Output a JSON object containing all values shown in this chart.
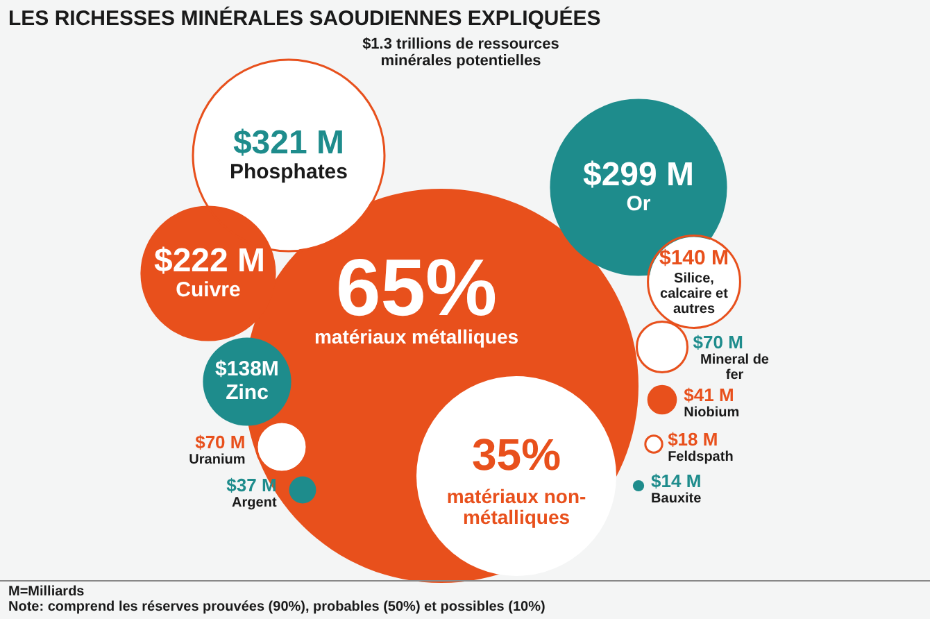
{
  "chart_data": {
    "type": "other",
    "title": "LES RICHESSES MINÉRALES SAOUDIENNES EXPLIQUÉES",
    "categories": [
      "Phosphates",
      "Or",
      "Cuivre",
      "Zinc",
      "Silice, calcaire et autres",
      "Uranium",
      "Argent",
      "Mineral de fer",
      "Niobium",
      "Feldspath",
      "Bauxite"
    ],
    "values": [
      321,
      299,
      222,
      138,
      140,
      70,
      37,
      70,
      41,
      18,
      14
    ],
    "value_labels": [
      "$321 M",
      "$299 M",
      "$222 M",
      "$138M",
      "$140 M",
      "$70 M",
      "$37 M",
      "$70 M",
      "$41 M",
      "$18 M",
      "$14 M"
    ],
    "colors": [
      "#ffffff",
      "#1e8c8c",
      "#e8501c",
      "#1e8c8c",
      "#ffffff",
      "#ffffff",
      "#1e8c8c",
      "#ffffff",
      "#e8501c",
      "#ffffff",
      "#1e8c8c"
    ],
    "annotations": [
      "$1.3 trillions de ressources minérales potentielles",
      "65%",
      "matériaux métalliques",
      "35%",
      "matériaux non-métalliques",
      "M=Milliards",
      "Note: comprend les réserves prouvées (90%), probables (50%) et possibles (10%)"
    ]
  }
}
